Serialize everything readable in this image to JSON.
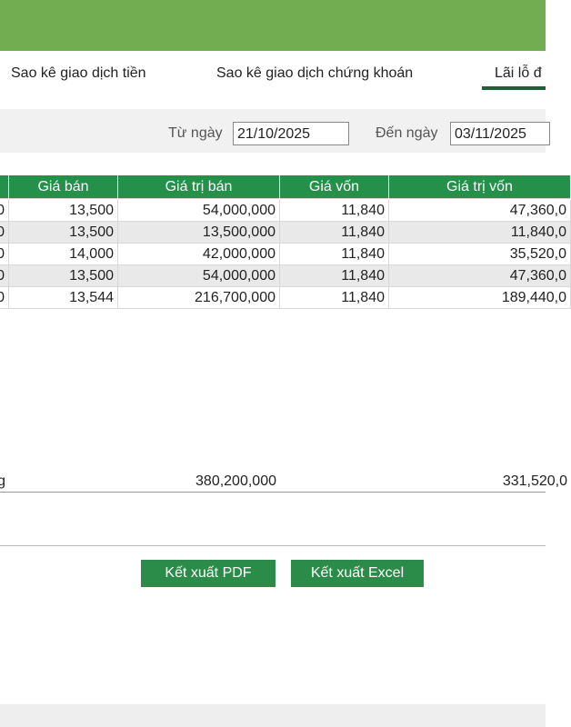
{
  "tabs": [
    "Sao kê giao dịch tiền",
    "Sao kê giao dịch chứng khoán",
    "Lãi lỗ đ"
  ],
  "filter": {
    "from_label": "Từ ngày",
    "from_value": "21/10/2025",
    "to_label": "Đến ngày",
    "to_value": "03/11/2025"
  },
  "table": {
    "headers": [
      "Giá bán",
      "Giá trị bán",
      "Giá vốn",
      "Giá trị vốn"
    ],
    "rows": [
      [
        "0",
        "13,500",
        "54,000,000",
        "11,840",
        "47,360,0"
      ],
      [
        "0",
        "13,500",
        "13,500,000",
        "11,840",
        "11,840,0"
      ],
      [
        "0",
        "14,000",
        "42,000,000",
        "11,840",
        "35,520,0"
      ],
      [
        "0",
        "13,500",
        "54,000,000",
        "11,840",
        "47,360,0"
      ],
      [
        "0",
        "13,544",
        "216,700,000",
        "11,840",
        "189,440,0"
      ]
    ],
    "total": [
      "g",
      "380,200,000",
      "331,520,0"
    ]
  },
  "buttons": [
    "Kết xuất PDF",
    "Kết xuất Excel"
  ]
}
